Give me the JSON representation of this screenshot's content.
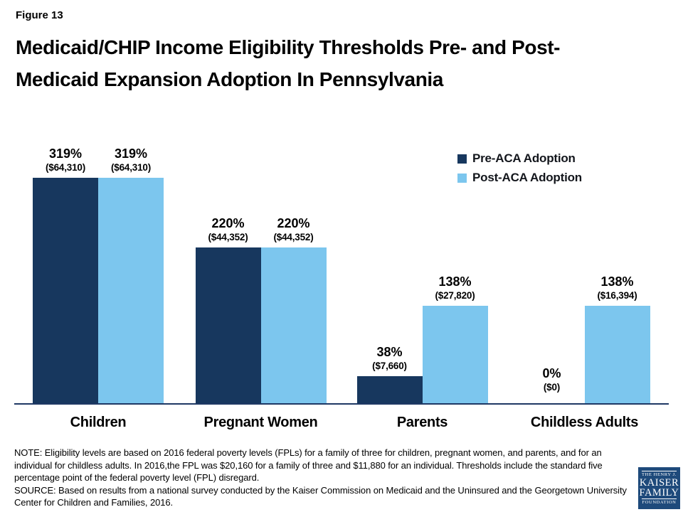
{
  "figure_label": "Figure 13",
  "title": {
    "line1": "Medicaid/CHIP Income Eligibility Thresholds Pre- and Post-",
    "line2": "Medicaid Expansion Adoption In Pennsylvania"
  },
  "legend": {
    "items": [
      {
        "label": "Pre-ACA Adoption",
        "color": "#17375E"
      },
      {
        "label": "Post-ACA Adoption",
        "color": "#7CC6EE"
      }
    ]
  },
  "chart_data": {
    "type": "bar",
    "categories": [
      "Children",
      "Pregnant Women",
      "Parents",
      "Childless Adults"
    ],
    "series": [
      {
        "name": "Pre-ACA Adoption",
        "color": "#17375E",
        "values": [
          319,
          220,
          38,
          0
        ],
        "percent_labels": [
          "319%",
          "220%",
          "38%",
          "0%"
        ],
        "dollar_labels": [
          "($64,310)",
          "($44,352)",
          "($7,660)",
          "($0)"
        ]
      },
      {
        "name": "Post-ACA Adoption",
        "color": "#7CC6EE",
        "values": [
          319,
          220,
          138,
          138
        ],
        "percent_labels": [
          "319%",
          "220%",
          "138%",
          "138%"
        ],
        "dollar_labels": [
          "($64,310)",
          "($44,352)",
          "($27,820)",
          "($16,394)"
        ]
      }
    ],
    "xlabel": "",
    "ylabel": "",
    "ylim": [
      0,
      340
    ],
    "grid": false,
    "legend_position": "upper-right",
    "axis_color": "#1F3864"
  },
  "notes": {
    "note": "NOTE: Eligibility levels are based on 2016 federal poverty levels (FPLs) for a family of three for children, pregnant women, and parents, and for an individual for childless adults. In 2016,the FPL was $20,160 for a family of three and $11,880 for an individual. Thresholds include the standard five percentage point of the federal poverty level (FPL) disregard.",
    "source": "SOURCE: Based on  results from a national survey conducted by the Kaiser Commission on Medicaid and the Uninsured and the Georgetown University Center for Children and Families, 2016."
  },
  "logo": {
    "line1": "THE HENRY J.",
    "line2": "KAISER",
    "line3": "FAMILY",
    "line4": "FOUNDATION",
    "bg_color": "#1E4A7B"
  }
}
